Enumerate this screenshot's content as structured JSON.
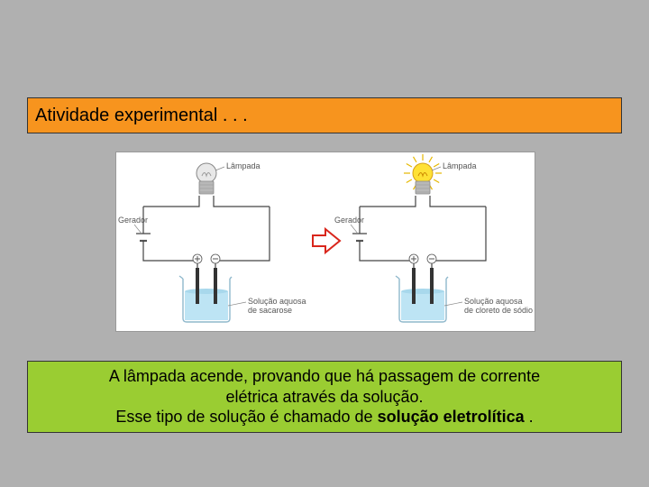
{
  "slide": {
    "background_color": "#b0b0b0",
    "title_banner": {
      "text": "Atividade experimental . . .",
      "bg": "#f7941e",
      "border": "#333333",
      "fontsize": 20
    },
    "caption_banner": {
      "bg": "#9acd32",
      "border": "#333333",
      "fontsize": 18,
      "line1": "A lâmpada acende, provando que há passagem de corrente",
      "line2": "elétrica através da solução.",
      "line3_pre": "Esse tipo de solução é chamado de ",
      "line3_bold": "solução eletrolítica",
      "line3_post": " ."
    }
  },
  "diagram": {
    "type": "infographic",
    "background_color": "#ffffff",
    "wire_color": "#444444",
    "wire_width": 1.2,
    "label_color": "#555555",
    "label_fontsize": 9,
    "arrow": {
      "fill": "#ffffff",
      "stroke": "#d9261c",
      "stroke_width": 2
    },
    "bulb_off": {
      "glass_fill": "#e8e8e8",
      "glass_stroke": "#888888",
      "base_fill": "#b8b8b8",
      "filament": "#999999"
    },
    "bulb_on": {
      "glass_fill": "#ffe135",
      "glass_stroke": "#d4a017",
      "base_fill": "#b8b8b8",
      "filament": "#cc8800",
      "ray_color": "#e6b800"
    },
    "generator": {
      "fill": "#ffffff",
      "stroke": "#555555"
    },
    "beaker": {
      "glass_stroke": "#8fb8cc",
      "glass_fill": "#ffffff",
      "liquid_fill": "#bde4f4",
      "liquid_top": "#a8d8ec",
      "electrode_fill": "#333333",
      "polarity_stroke": "#555555"
    },
    "leader_color": "#888888",
    "labels": {
      "lampada": "Lâmpada",
      "gerador": "Gerador",
      "sol_sucrose_l1": "Solução aquosa",
      "sol_sucrose_l2": "de sacarose",
      "sol_nacl_l1": "Solução aquosa",
      "sol_nacl_l2": "de cloreto de sódio"
    },
    "left": {
      "bulb_on": false,
      "solution": "sucrose"
    },
    "right": {
      "bulb_on": true,
      "solution": "nacl"
    }
  }
}
